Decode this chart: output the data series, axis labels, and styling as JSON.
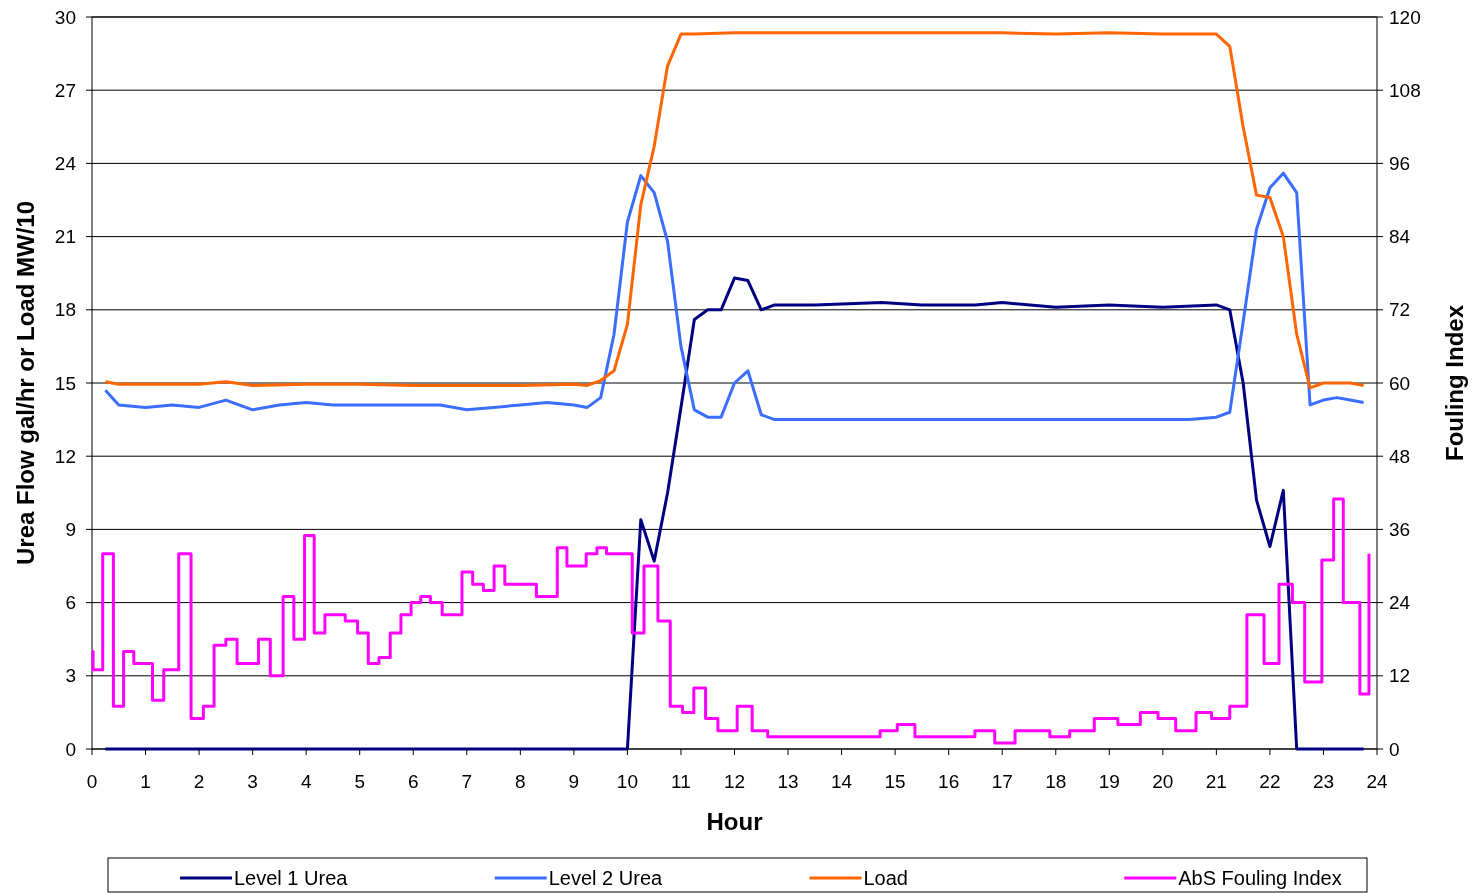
{
  "chart_data": {
    "type": "line",
    "xlabel": "Hour",
    "ylabel": "Urea Flow gal/hr or Load MW/10",
    "y2label": "Fouling Index",
    "xlim": [
      0,
      24
    ],
    "xticks": [
      0,
      1,
      2,
      3,
      4,
      5,
      6,
      7,
      8,
      9,
      10,
      11,
      12,
      13,
      14,
      15,
      16,
      17,
      18,
      19,
      20,
      21,
      22,
      23,
      24
    ],
    "ylim": [
      0,
      30
    ],
    "yticks": [
      0,
      3,
      6,
      9,
      12,
      15,
      18,
      21,
      24,
      27,
      30
    ],
    "y2lim": [
      0,
      120
    ],
    "y2ticks": [
      0,
      12,
      24,
      36,
      48,
      60,
      72,
      84,
      96,
      108,
      120
    ],
    "grid": "y",
    "legend": "bottom",
    "marker": "none",
    "line_style": "solid",
    "series": [
      {
        "name": "Level 1 Urea",
        "color": "#000080",
        "x": [
          0.25,
          2,
          4,
          6,
          8,
          9,
          10,
          10.25,
          10.5,
          10.75,
          11,
          11.25,
          11.5,
          11.75,
          12,
          12.25,
          12.5,
          12.75,
          13.5,
          14.75,
          15.5,
          16.5,
          17,
          18,
          19,
          20,
          21,
          21.25,
          21.5,
          21.75,
          22,
          22.25,
          22.5,
          23,
          23.75
        ],
        "values": [
          0,
          0,
          0,
          0,
          0,
          0,
          0,
          9.4,
          7.7,
          10.5,
          14,
          17.6,
          18,
          18,
          19.3,
          19.2,
          18,
          18.2,
          18.2,
          18.3,
          18.2,
          18.2,
          18.3,
          18.1,
          18.2,
          18.1,
          18.2,
          18,
          15,
          10.2,
          8.3,
          10.6,
          0,
          0,
          0
        ]
      },
      {
        "name": "Level 2 Urea",
        "color": "#3b6eff",
        "x": [
          0.25,
          0.5,
          1,
          1.5,
          2,
          2.5,
          3,
          3.5,
          4,
          4.5,
          5,
          5.5,
          6,
          6.5,
          7,
          7.5,
          8,
          8.5,
          9,
          9.25,
          9.5,
          9.75,
          10,
          10.25,
          10.5,
          10.75,
          11,
          11.25,
          11.5,
          11.75,
          12,
          12.25,
          12.5,
          12.75,
          13.5,
          14.5,
          15.5,
          16.5,
          17.5,
          18.5,
          19.5,
          20.5,
          21,
          21.25,
          21.5,
          21.75,
          22,
          22.25,
          22.5,
          22.75,
          23,
          23.25,
          23.5,
          23.75
        ],
        "values": [
          14.7,
          14.1,
          14,
          14.1,
          14,
          14.3,
          13.9,
          14.1,
          14.2,
          14.1,
          14.1,
          14.1,
          14.1,
          14.1,
          13.9,
          14,
          14.1,
          14.2,
          14.1,
          14,
          14.4,
          17,
          21.6,
          23.5,
          22.8,
          20.8,
          16.5,
          13.9,
          13.6,
          13.6,
          15,
          15.5,
          13.7,
          13.5,
          13.5,
          13.5,
          13.5,
          13.5,
          13.5,
          13.5,
          13.5,
          13.5,
          13.6,
          13.8,
          17.5,
          21.3,
          23,
          23.6,
          22.8,
          14.1,
          14.3,
          14.4,
          14.3,
          14.2
        ]
      },
      {
        "name": "Load",
        "color": "#ff6600",
        "x": [
          0.25,
          0.5,
          1,
          2,
          2.5,
          3,
          4,
          5,
          6,
          7,
          8,
          9,
          9.25,
          9.5,
          9.75,
          10,
          10.25,
          10.5,
          10.75,
          11,
          11.25,
          12,
          13,
          14,
          15,
          16,
          17,
          18,
          19,
          20,
          21,
          21.25,
          21.5,
          21.75,
          22,
          22.25,
          22.5,
          22.75,
          23,
          23.5,
          23.75
        ],
        "values": [
          15.05,
          14.95,
          14.95,
          14.95,
          15.05,
          14.9,
          14.95,
          14.95,
          14.9,
          14.9,
          14.9,
          14.95,
          14.9,
          15.1,
          15.5,
          17.4,
          22.3,
          24.7,
          28,
          29.3,
          29.3,
          29.35,
          29.35,
          29.35,
          29.35,
          29.35,
          29.35,
          29.3,
          29.35,
          29.3,
          29.3,
          28.8,
          25.5,
          22.7,
          22.6,
          21,
          17,
          14.8,
          15,
          15,
          14.9
        ]
      },
      {
        "name": "AbS Fouling Index",
        "color": "#ff00ff",
        "type": "step",
        "axis": "y2",
        "x": [
          0,
          0.02,
          0.2,
          0.4,
          0.59,
          0.78,
          1.13,
          1.34,
          1.62,
          1.85,
          2.08,
          2.28,
          2.5,
          2.71,
          3.11,
          3.33,
          3.57,
          3.77,
          3.97,
          4.15,
          4.35,
          4.73,
          4.96,
          5.16,
          5.36,
          5.57,
          5.77,
          5.96,
          6.14,
          6.32,
          6.54,
          6.91,
          7.11,
          7.31,
          7.51,
          7.71,
          8.3,
          8.69,
          8.87,
          9.23,
          9.43,
          9.61,
          10.09,
          10.31,
          10.57,
          10.8,
          11.03,
          11.24,
          11.46,
          11.69,
          12.05,
          12.33,
          12.62,
          14.72,
          15.04,
          15.37,
          16.49,
          16.86,
          17.24,
          17.89,
          18.26,
          18.72,
          19.16,
          19.58,
          19.91,
          20.24,
          20.62,
          20.91,
          21.25,
          21.57,
          21.89,
          22.17,
          22.42,
          22.65,
          22.97,
          23.19,
          23.37,
          23.68,
          23.85
        ],
        "values": [
          16,
          13,
          32,
          7,
          16,
          14,
          8,
          13,
          32,
          5,
          7,
          17,
          18,
          14,
          18,
          12,
          25,
          18,
          35,
          19,
          22,
          21,
          19,
          14,
          15,
          19,
          22,
          24,
          25,
          24,
          22,
          29,
          27,
          26,
          30,
          27,
          25,
          33,
          30,
          32,
          33,
          32,
          19,
          30,
          21,
          7,
          6,
          10,
          5,
          3,
          7,
          3,
          2,
          3,
          4,
          2,
          3,
          1,
          3,
          2,
          3,
          5,
          4,
          6,
          5,
          3,
          6,
          5,
          7,
          22,
          14,
          27,
          24,
          11,
          31,
          41,
          24,
          9,
          32
        ]
      }
    ]
  }
}
